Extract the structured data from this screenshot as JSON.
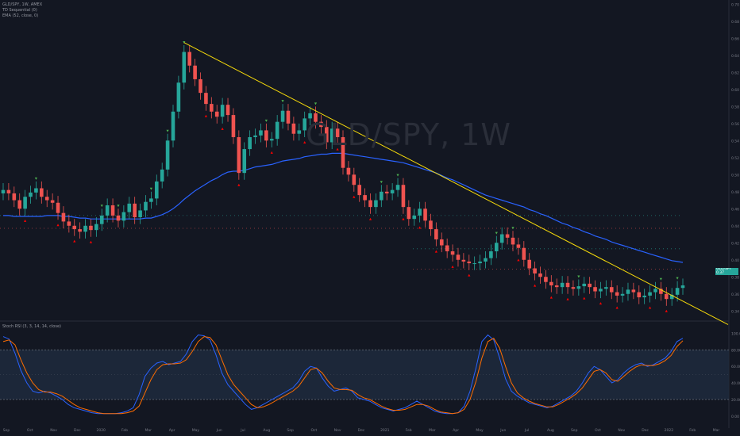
{
  "header": {
    "symbol_line": "GLD/SPY, 1W, AMEX",
    "indicator_1": "TD Sequential (0)",
    "indicator_2": "EMA (52, close, 0)",
    "watermark": "GLD/SPY, 1W"
  },
  "stoch_header": "Stoch RSI (3, 3, 14, 14, close)",
  "price_badge": {
    "symbol": "GLD/SPY",
    "value": "0.37"
  },
  "colors": {
    "background": "#131722",
    "up": "#26a69a",
    "down": "#ef5350",
    "ema": "#2962ff",
    "trendline": "#f5d90a",
    "stoch_k": "#2962ff",
    "stoch_d": "#ff6d00",
    "stoch_band": "#1e2a3d",
    "td_up": "#4caf50",
    "td_down": "#ff0000"
  },
  "chart_data": [
    {
      "type": "candlestick",
      "title": "",
      "y_ticks": [
        "0.70",
        "0.68",
        "0.66",
        "0.64",
        "0.62",
        "0.60",
        "0.58",
        "0.56",
        "0.54",
        "0.52",
        "0.50",
        "0.48",
        "0.46",
        "0.44",
        "0.42",
        "0.40",
        "0.38",
        "0.36",
        "0.34"
      ],
      "ylim": [
        0.33,
        0.705
      ],
      "x_ticks": [
        "Sep",
        "Oct",
        "Nov",
        "Dec",
        "2020",
        "Feb",
        "Mar",
        "Apr",
        "May",
        "Jun",
        "Jul",
        "Aug",
        "Sep",
        "Oct",
        "Nov",
        "Dec",
        "2021",
        "Feb",
        "Mar",
        "Apr",
        "May",
        "Jun",
        "Jul",
        "Aug",
        "Sep",
        "Oct",
        "Nov",
        "Dec",
        "2022",
        "Feb",
        "Mar"
      ],
      "closes": [
        0.482,
        0.478,
        0.47,
        0.46,
        0.474,
        0.479,
        0.484,
        0.474,
        0.47,
        0.467,
        0.455,
        0.445,
        0.44,
        0.436,
        0.433,
        0.44,
        0.435,
        0.442,
        0.452,
        0.464,
        0.452,
        0.446,
        0.456,
        0.466,
        0.45,
        0.458,
        0.468,
        0.472,
        0.492,
        0.506,
        0.54,
        0.574,
        0.608,
        0.644,
        0.628,
        0.612,
        0.596,
        0.583,
        0.574,
        0.568,
        0.582,
        0.57,
        0.544,
        0.502,
        0.53,
        0.544,
        0.546,
        0.552,
        0.54,
        0.542,
        0.562,
        0.575,
        0.56,
        0.548,
        0.552,
        0.566,
        0.572,
        0.562,
        0.556,
        0.538,
        0.554,
        0.544,
        0.508,
        0.5,
        0.488,
        0.476,
        0.47,
        0.462,
        0.47,
        0.48,
        0.478,
        0.482,
        0.488,
        0.462,
        0.448,
        0.452,
        0.46,
        0.446,
        0.436,
        0.424,
        0.417,
        0.41,
        0.406,
        0.4,
        0.398,
        0.396,
        0.396,
        0.398,
        0.402,
        0.41,
        0.42,
        0.43,
        0.426,
        0.418,
        0.414,
        0.4,
        0.39,
        0.384,
        0.38,
        0.374,
        0.37,
        0.368,
        0.373,
        0.368,
        0.366,
        0.369,
        0.372,
        0.368,
        0.363,
        0.366,
        0.368,
        0.362,
        0.358,
        0.36,
        0.365,
        0.362,
        0.356,
        0.358,
        0.362,
        0.366,
        0.36,
        0.354,
        0.359,
        0.367,
        0.37
      ],
      "highs_lows_note": "",
      "ema_values": [
        0.452,
        0.452,
        0.451,
        0.451,
        0.451,
        0.451,
        0.451,
        0.451,
        0.452,
        0.452,
        0.452,
        0.451,
        0.451,
        0.45,
        0.449,
        0.449,
        0.448,
        0.448,
        0.448,
        0.448,
        0.448,
        0.448,
        0.448,
        0.448,
        0.448,
        0.448,
        0.449,
        0.449,
        0.451,
        0.453,
        0.456,
        0.46,
        0.465,
        0.471,
        0.476,
        0.481,
        0.485,
        0.489,
        0.493,
        0.496,
        0.5,
        0.503,
        0.504,
        0.504,
        0.505,
        0.507,
        0.509,
        0.51,
        0.511,
        0.512,
        0.514,
        0.516,
        0.517,
        0.518,
        0.519,
        0.521,
        0.522,
        0.523,
        0.524,
        0.524,
        0.525,
        0.525,
        0.525,
        0.524,
        0.523,
        0.522,
        0.521,
        0.52,
        0.519,
        0.518,
        0.517,
        0.516,
        0.515,
        0.514,
        0.512,
        0.51,
        0.508,
        0.506,
        0.504,
        0.502,
        0.499,
        0.496,
        0.494,
        0.491,
        0.488,
        0.485,
        0.482,
        0.479,
        0.476,
        0.474,
        0.472,
        0.47,
        0.468,
        0.466,
        0.464,
        0.462,
        0.459,
        0.457,
        0.454,
        0.452,
        0.449,
        0.446,
        0.443,
        0.441,
        0.438,
        0.436,
        0.433,
        0.431,
        0.428,
        0.426,
        0.424,
        0.421,
        0.419,
        0.417,
        0.415,
        0.413,
        0.411,
        0.409,
        0.407,
        0.405,
        0.403,
        0.401,
        0.399,
        0.398,
        0.397
      ],
      "trendline": {
        "from": [
          33,
          0.655
        ],
        "to": [
          147,
          0.346
        ]
      },
      "horizontal_dotted": [
        0.452,
        0.437,
        0.413,
        0.389
      ]
    },
    {
      "type": "line",
      "title": "",
      "y_ticks": [
        "100.00",
        "80.00",
        "60.00",
        "40.00",
        "20.00",
        "0.00"
      ],
      "ylim": [
        -5,
        110
      ],
      "band": [
        20,
        80
      ],
      "series": [
        {
          "values": [
            96,
            93,
            76,
            55,
            40,
            30,
            28,
            30,
            28,
            24,
            20,
            14,
            10,
            8,
            6,
            4,
            3,
            3,
            3,
            3,
            4,
            6,
            10,
            26,
            48,
            58,
            64,
            66,
            62,
            64,
            66,
            75,
            90,
            98,
            97,
            92,
            74,
            52,
            38,
            30,
            22,
            14,
            8,
            10,
            14,
            18,
            22,
            26,
            30,
            34,
            42,
            54,
            60,
            58,
            46,
            36,
            30,
            32,
            34,
            30,
            22,
            20,
            18,
            14,
            10,
            8,
            6,
            8,
            10,
            14,
            18,
            14,
            10,
            6,
            4,
            3,
            3,
            4,
            12,
            30,
            58,
            90,
            98,
            92,
            70,
            45,
            30,
            24,
            20,
            16,
            14,
            12,
            10,
            12,
            16,
            20,
            24,
            30,
            40,
            52,
            60,
            56,
            48,
            40,
            44,
            52,
            58,
            62,
            64,
            60,
            62,
            66,
            70,
            78,
            90,
            94
          ]
        },
        {
          "values": [
            90,
            92,
            86,
            68,
            52,
            40,
            32,
            29,
            29,
            27,
            24,
            19,
            14,
            10,
            8,
            6,
            4,
            3,
            3,
            3,
            3,
            4,
            6,
            12,
            28,
            44,
            56,
            62,
            63,
            63,
            64,
            68,
            78,
            90,
            96,
            95,
            86,
            68,
            50,
            38,
            30,
            22,
            14,
            10,
            11,
            14,
            18,
            22,
            26,
            30,
            36,
            46,
            56,
            58,
            52,
            42,
            34,
            32,
            32,
            31,
            26,
            22,
            20,
            16,
            12,
            9,
            7,
            7,
            8,
            11,
            14,
            14,
            12,
            8,
            5,
            4,
            3,
            4,
            8,
            20,
            42,
            70,
            90,
            94,
            82,
            60,
            40,
            28,
            22,
            18,
            15,
            13,
            11,
            11,
            14,
            18,
            22,
            27,
            34,
            44,
            54,
            56,
            52,
            44,
            42,
            48,
            54,
            59,
            62,
            61,
            61,
            63,
            67,
            73,
            84,
            91
          ]
        }
      ]
    }
  ]
}
